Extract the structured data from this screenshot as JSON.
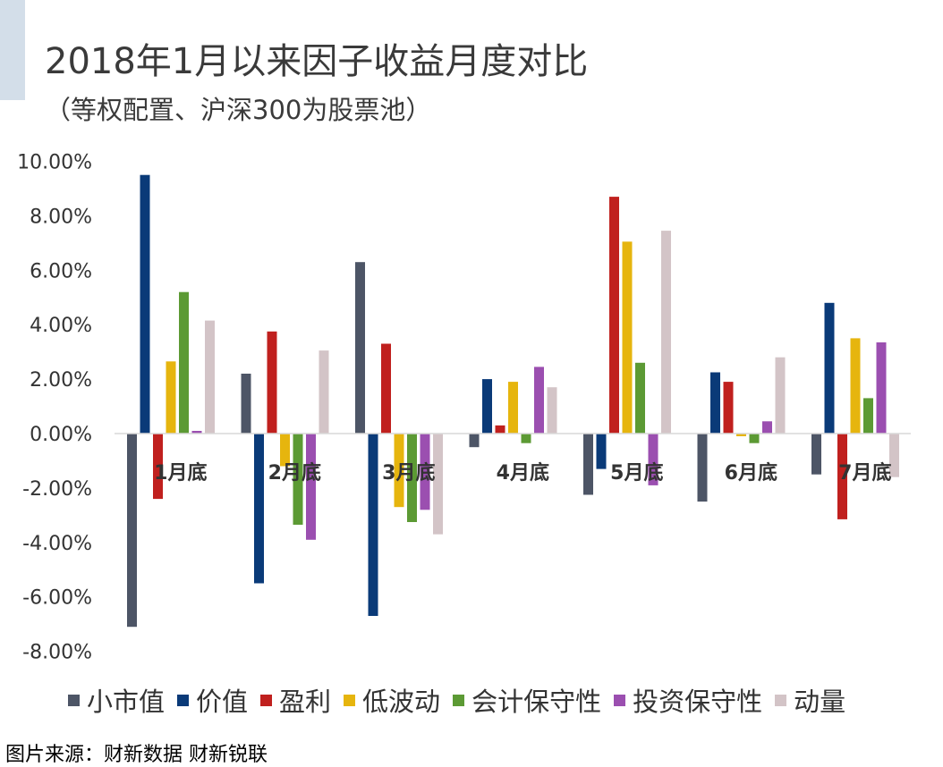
{
  "header": {
    "title": "2018年1月以来因子收益月度对比",
    "subtitle": "（等权配置、沪深300为股票池）"
  },
  "source": "图片来源：财新数据 财新锐联",
  "chart_data": {
    "type": "bar",
    "title": "2018年1月以来因子收益月度对比",
    "subtitle": "（等权配置、沪深300为股票池）",
    "categories": [
      "1月底",
      "2月底",
      "3月底",
      "4月底",
      "5月底",
      "6月底",
      "7月底"
    ],
    "yticks": [
      "10.00%",
      "8.00%",
      "6.00%",
      "4.00%",
      "2.00%",
      "0.00%",
      "-2.00%",
      "-4.00%",
      "-6.00%",
      "-8.00%"
    ],
    "ylim": [
      -8,
      10
    ],
    "unit": "%",
    "grid": false,
    "legend_position": "bottom",
    "series": [
      {
        "name": "小市值",
        "color": "#4d5566",
        "values": [
          -7.1,
          2.2,
          6.3,
          -0.5,
          -2.25,
          -2.5,
          -1.5
        ]
      },
      {
        "name": "价值",
        "color": "#0a3a78",
        "values": [
          9.5,
          -5.5,
          -6.7,
          2.0,
          -1.3,
          2.25,
          4.8
        ]
      },
      {
        "name": "盈利",
        "color": "#c0201e",
        "values": [
          -2.4,
          3.75,
          3.3,
          0.3,
          8.7,
          1.9,
          -3.15
        ]
      },
      {
        "name": "低波动",
        "color": "#e6b50e",
        "values": [
          2.65,
          -1.2,
          -2.7,
          1.9,
          7.05,
          -0.1,
          3.5
        ]
      },
      {
        "name": "会计保守性",
        "color": "#5c9a34",
        "values": [
          5.2,
          -3.35,
          -3.25,
          -0.35,
          2.6,
          -0.35,
          1.3
        ]
      },
      {
        "name": "投资保守性",
        "color": "#9b4fb0",
        "values": [
          0.1,
          -3.9,
          -2.8,
          2.45,
          -1.9,
          0.45,
          3.35
        ]
      },
      {
        "name": "动量",
        "color": "#d3c4c7",
        "values": [
          4.15,
          3.05,
          -3.7,
          1.7,
          7.45,
          2.8,
          -1.6
        ]
      }
    ]
  }
}
